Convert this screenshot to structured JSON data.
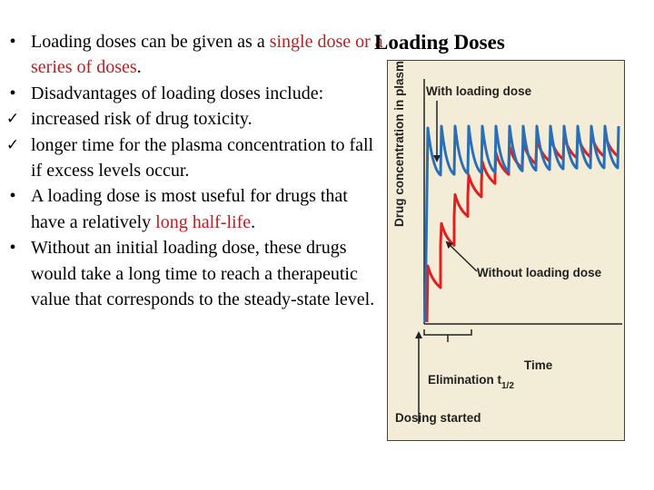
{
  "slide": {
    "title": "Loading Doses",
    "bullets": [
      {
        "marker": "•",
        "type": "bullet",
        "pre": "Loading doses can be given as a ",
        "highlight": "single dose or a series of doses",
        "post": "."
      },
      {
        "marker": "•",
        "type": "bullet",
        "pre": "Disadvantages of loading doses include:",
        "highlight": "",
        "post": ""
      },
      {
        "marker": "✓",
        "type": "check",
        "pre": "increased risk of drug toxicity.",
        "highlight": "",
        "post": ""
      },
      {
        "marker": "✓",
        "type": "check",
        "pre": "longer time for the plasma concentration to fall if excess levels occur.",
        "highlight": "",
        "post": ""
      },
      {
        "marker": "•",
        "type": "bullet",
        "pre": "A loading dose is most useful for drugs that have a relatively ",
        "highlight": "long half-life",
        "post": "."
      },
      {
        "marker": "•",
        "type": "bullet",
        "pre": "Without an initial loading dose, these drugs would take a long time to reach a therapeutic value that corresponds to the steady-state level.",
        "highlight": "",
        "post": ""
      }
    ]
  },
  "figure": {
    "ylabel": "Drug concentration in plasma",
    "xlabel": "Time",
    "label_with": "With loading dose",
    "label_without": "Without loading dose",
    "label_elimination": "Elimination t",
    "label_elimination_sub": "1/2",
    "label_dosing": "Dosing started",
    "colors": {
      "with_loading": "#2a6fb5",
      "without_loading": "#e02020",
      "background": "#f3ecd6"
    }
  }
}
